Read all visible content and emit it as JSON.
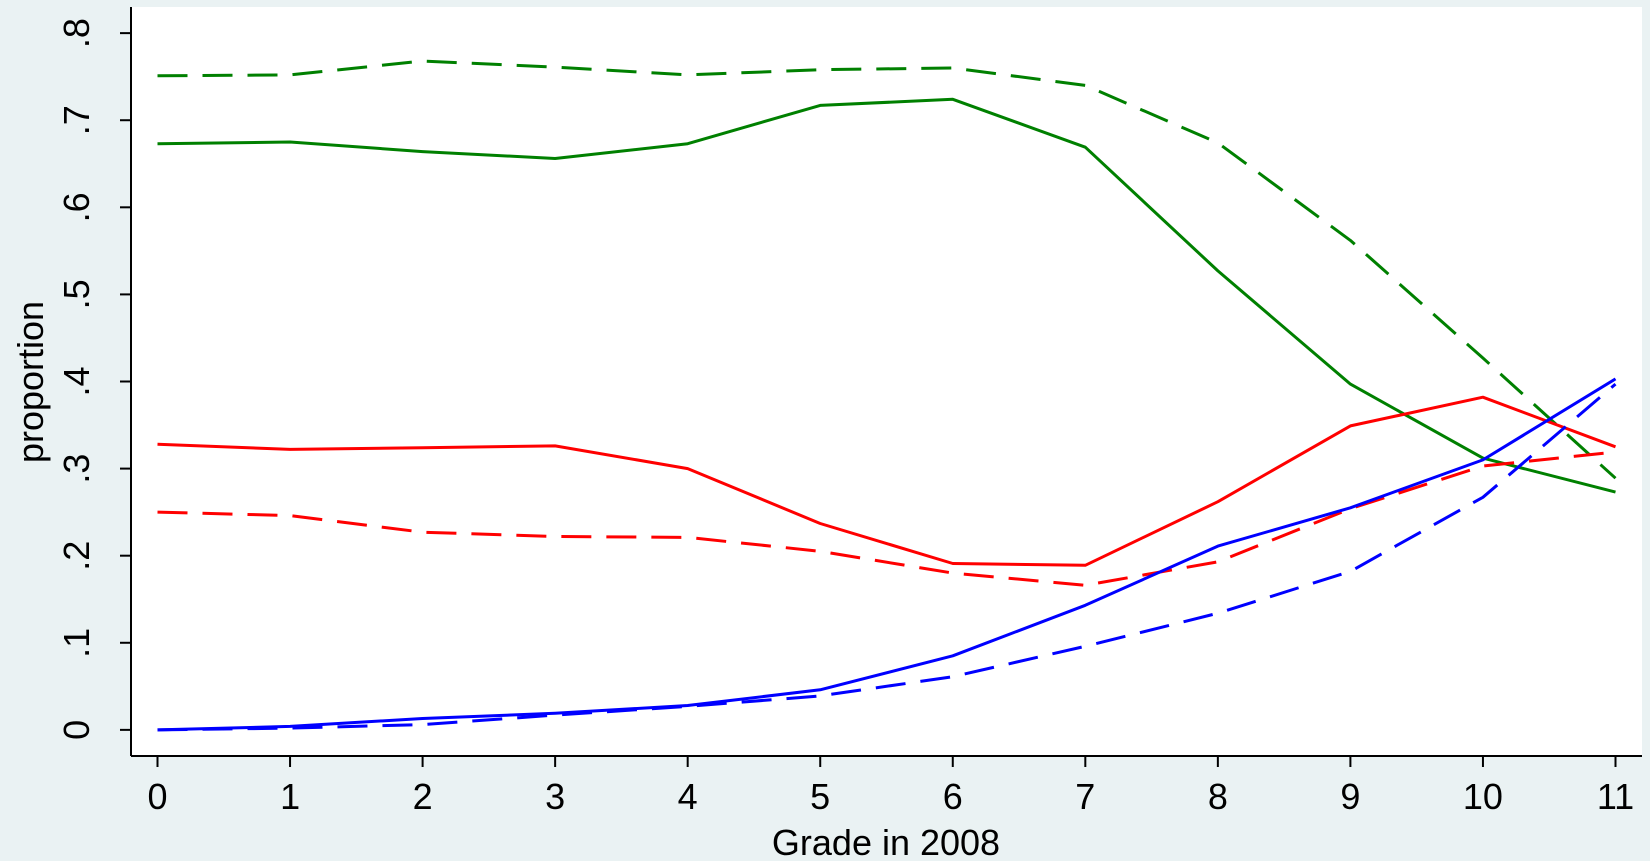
{
  "chart_data": {
    "type": "line",
    "xlabel": "Grade in 2008",
    "ylabel": "proportion",
    "x": [
      0,
      1,
      2,
      3,
      4,
      5,
      6,
      7,
      8,
      9,
      10,
      11
    ],
    "xticks": [
      "0",
      "1",
      "2",
      "3",
      "4",
      "5",
      "6",
      "7",
      "8",
      "9",
      "10",
      "11"
    ],
    "yticks": [
      {
        "value": 0,
        "label": "0"
      },
      {
        "value": 0.1,
        "label": ".1"
      },
      {
        "value": 0.2,
        "label": ".2"
      },
      {
        "value": 0.3,
        "label": ".3"
      },
      {
        "value": 0.4,
        "label": ".4"
      },
      {
        "value": 0.5,
        "label": ".5"
      },
      {
        "value": 0.6,
        "label": ".6"
      },
      {
        "value": 0.7,
        "label": ".7"
      },
      {
        "value": 0.8,
        "label": ".8"
      }
    ],
    "xlim": [
      -0.2,
      11.2
    ],
    "ylim": [
      -0.03,
      0.83
    ],
    "grid": false,
    "legend": "none",
    "series": [
      {
        "color": "#008000",
        "style": "solid",
        "values": [
          0.673,
          0.675,
          0.664,
          0.656,
          0.673,
          0.717,
          0.724,
          0.669,
          0.527,
          0.397,
          0.312,
          0.273
        ]
      },
      {
        "color": "#008000",
        "style": "dashed",
        "values": [
          0.751,
          0.752,
          0.768,
          0.761,
          0.752,
          0.758,
          0.76,
          0.74,
          0.674,
          0.562,
          0.427,
          0.289
        ]
      },
      {
        "color": "#ff0000",
        "style": "solid",
        "values": [
          0.328,
          0.322,
          0.324,
          0.326,
          0.3,
          0.237,
          0.191,
          0.189,
          0.262,
          0.349,
          0.382,
          0.325
        ]
      },
      {
        "color": "#ff0000",
        "style": "dashed",
        "values": [
          0.25,
          0.246,
          0.227,
          0.222,
          0.221,
          0.205,
          0.18,
          0.166,
          0.193,
          0.254,
          0.303,
          0.319
        ]
      },
      {
        "color": "#0000ff",
        "style": "solid",
        "values": [
          0.0,
          0.004,
          0.013,
          0.019,
          0.028,
          0.046,
          0.085,
          0.143,
          0.211,
          0.255,
          0.31,
          0.403
        ]
      },
      {
        "color": "#0000ff",
        "style": "dashed",
        "values": [
          0.0,
          0.002,
          0.006,
          0.017,
          0.027,
          0.039,
          0.061,
          0.096,
          0.134,
          0.182,
          0.267,
          0.397
        ]
      }
    ]
  }
}
